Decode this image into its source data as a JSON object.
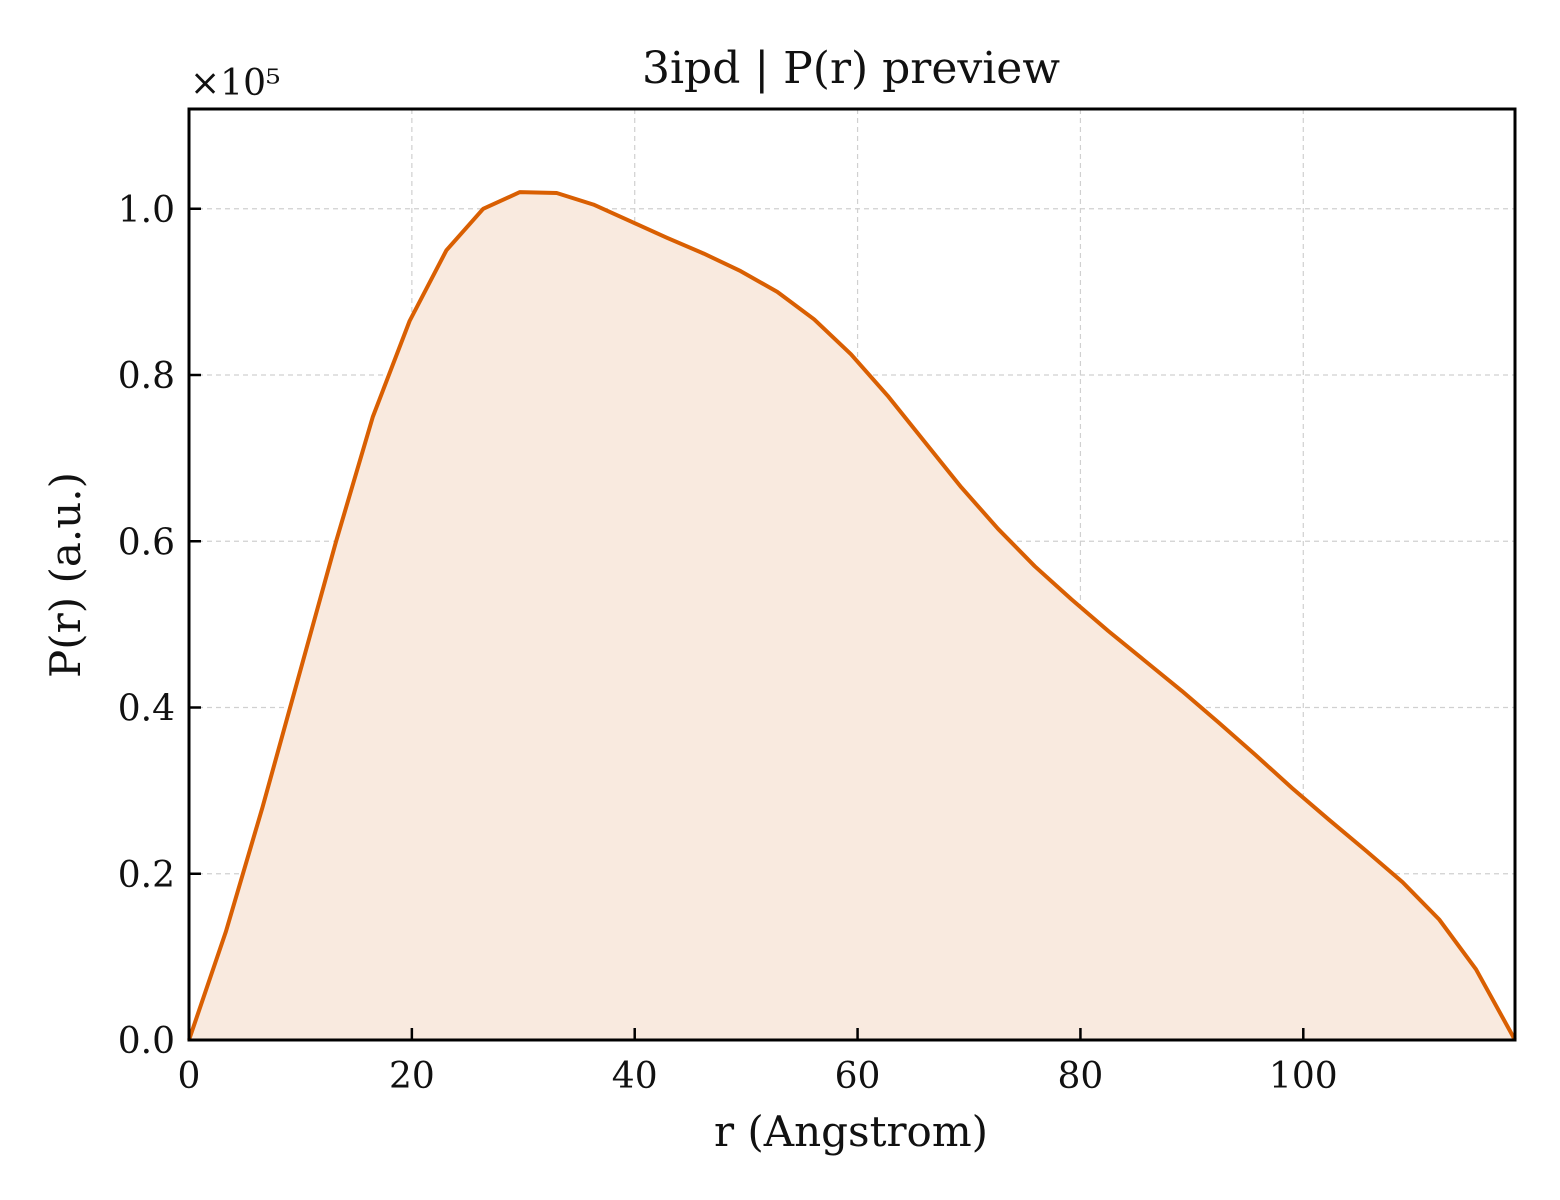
{
  "chart_data": {
    "type": "area",
    "title": "3ipd | P(r) preview",
    "xlabel": "r (Angstrom)",
    "ylabel": "P(r) (a.u.)",
    "y_multiplier": "×10⁵",
    "xlim": [
      0,
      119
    ],
    "ylim": [
      0,
      1.12
    ],
    "xticks": [
      0,
      20,
      40,
      60,
      80,
      100
    ],
    "xtick_labels": [
      "0",
      "20",
      "40",
      "60",
      "80",
      "100"
    ],
    "yticks": [
      0,
      0.2,
      0.4,
      0.6,
      0.8,
      1.0
    ],
    "ytick_labels": [
      "0.0",
      "0.2",
      "0.4",
      "0.6",
      "0.8",
      "1.0"
    ],
    "grid": true,
    "colors": {
      "line": "#d95f02",
      "fill": "#f9eadf",
      "grid": "#d0d0d0",
      "frame": "#000000"
    },
    "series": [
      {
        "x": [
          0,
          3.3,
          6.6,
          9.9,
          13.2,
          16.5,
          19.8,
          23.1,
          26.4,
          29.7,
          33.0,
          36.3,
          39.6,
          42.9,
          46.2,
          49.5,
          52.8,
          56.1,
          59.4,
          62.7,
          66.0,
          69.3,
          72.6,
          75.9,
          79.2,
          82.5,
          85.8,
          89.1,
          92.4,
          95.7,
          99.0,
          102.3,
          105.6,
          108.9,
          112.2,
          115.5,
          119.0
        ],
        "y": [
          0.0,
          0.13,
          0.28,
          0.44,
          0.6,
          0.75,
          0.865,
          0.95,
          1.0,
          1.02,
          1.019,
          1.005,
          0.985,
          0.965,
          0.946,
          0.925,
          0.9,
          0.867,
          0.825,
          0.775,
          0.72,
          0.665,
          0.615,
          0.57,
          0.53,
          0.492,
          0.456,
          0.42,
          0.382,
          0.343,
          0.303,
          0.265,
          0.228,
          0.19,
          0.145,
          0.085,
          0.0
        ]
      }
    ]
  }
}
